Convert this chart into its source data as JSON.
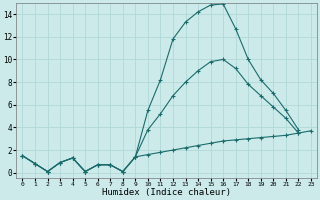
{
  "xlabel": "Humidex (Indice chaleur)",
  "xlim": [
    -0.5,
    23.5
  ],
  "ylim": [
    -0.5,
    15
  ],
  "xticks": [
    0,
    1,
    2,
    3,
    4,
    5,
    6,
    7,
    8,
    9,
    10,
    11,
    12,
    13,
    14,
    15,
    16,
    17,
    18,
    19,
    20,
    21,
    22,
    23
  ],
  "yticks": [
    0,
    2,
    4,
    6,
    8,
    10,
    12,
    14
  ],
  "bg_color": "#cceaea",
  "line_color": "#1a6b6b",
  "grid_color": "#b0d8d8",
  "line1_x": [
    0,
    1,
    2,
    3,
    4,
    5,
    6,
    7,
    8,
    9,
    10,
    11,
    12,
    13,
    14,
    15,
    16,
    17,
    18,
    19,
    20,
    21,
    22
  ],
  "line1_y": [
    1.5,
    0.8,
    0.1,
    0.9,
    1.3,
    0.1,
    0.7,
    0.7,
    0.1,
    1.4,
    5.5,
    8.2,
    11.8,
    13.3,
    14.2,
    14.8,
    14.9,
    12.7,
    10.0,
    8.2,
    7.0,
    5.5,
    3.8
  ],
  "line2_x": [
    0,
    1,
    2,
    3,
    4,
    5,
    6,
    7,
    8,
    9,
    10,
    11,
    12,
    13,
    14,
    15,
    16,
    17,
    18,
    19,
    20,
    21,
    22
  ],
  "line2_y": [
    1.5,
    0.8,
    0.1,
    0.9,
    1.3,
    0.1,
    0.7,
    0.7,
    0.1,
    1.4,
    3.8,
    5.2,
    6.8,
    8.0,
    9.0,
    9.8,
    10.0,
    9.2,
    7.8,
    6.8,
    5.8,
    4.8,
    3.5
  ],
  "line3_x": [
    0,
    1,
    2,
    3,
    4,
    5,
    6,
    7,
    8,
    9,
    10,
    11,
    12,
    13,
    14,
    15,
    16,
    17,
    18,
    19,
    20,
    21,
    22,
    23
  ],
  "line3_y": [
    1.5,
    0.8,
    0.1,
    0.9,
    1.3,
    0.1,
    0.7,
    0.7,
    0.1,
    1.4,
    1.6,
    1.8,
    2.0,
    2.2,
    2.4,
    2.6,
    2.8,
    2.9,
    3.0,
    3.1,
    3.2,
    3.3,
    3.5,
    3.7
  ]
}
